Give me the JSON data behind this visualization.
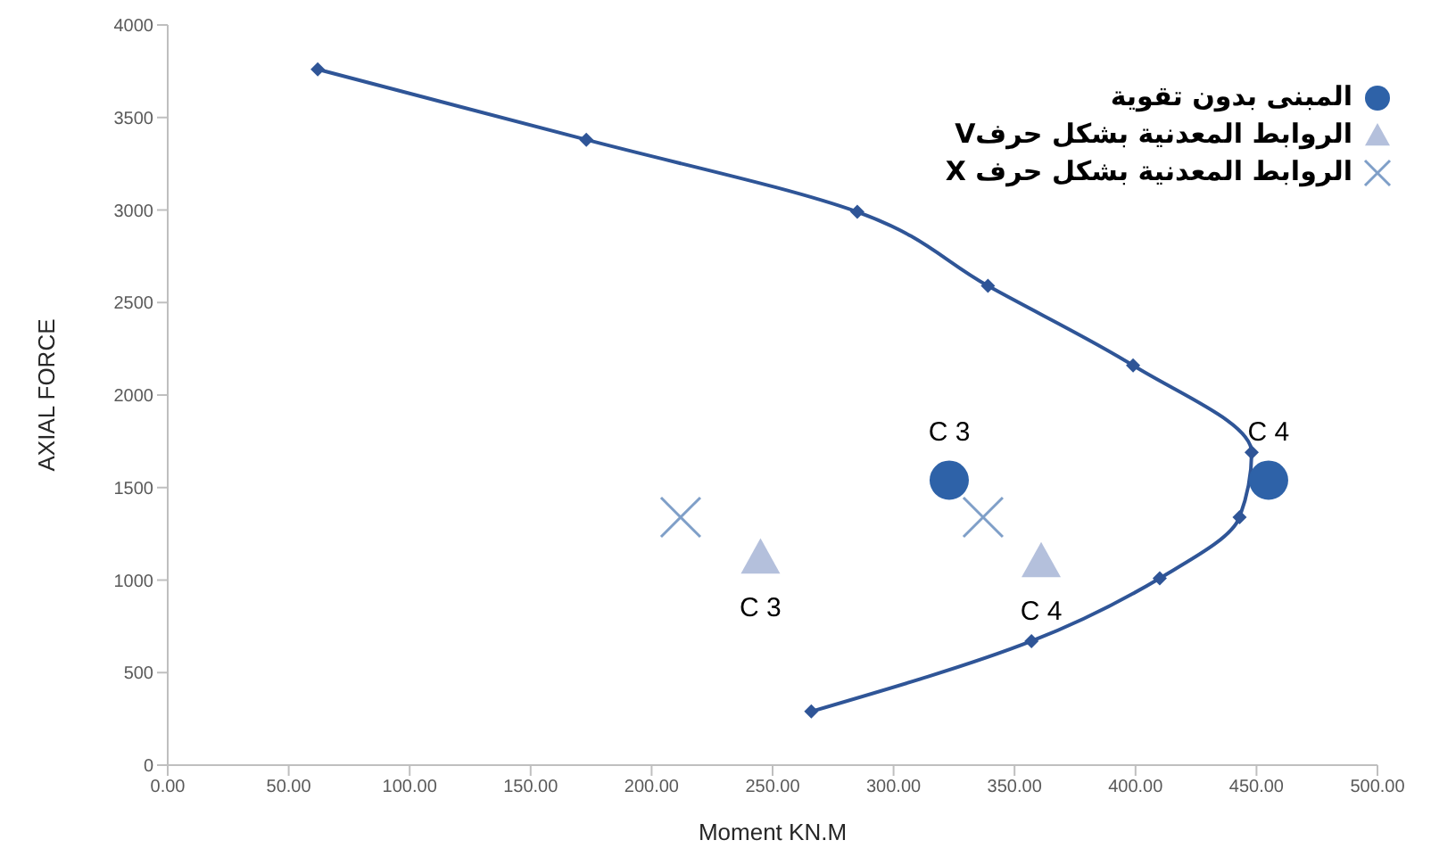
{
  "chart_data": {
    "type": "scatter",
    "xlabel": "Moment KN.M",
    "ylabel": "AXIAL FORCE",
    "xlim": [
      0,
      500
    ],
    "xticks": [
      {
        "value": 0,
        "label": "0.00"
      },
      {
        "value": 50,
        "label": "50.00"
      },
      {
        "value": 100,
        "label": "100.00"
      },
      {
        "value": 150,
        "label": "150.00"
      },
      {
        "value": 200,
        "label": "200.00"
      },
      {
        "value": 250,
        "label": "250.00"
      },
      {
        "value": 300,
        "label": "300.00"
      },
      {
        "value": 350,
        "label": "350.00"
      },
      {
        "value": 400,
        "label": "400.00"
      },
      {
        "value": 450,
        "label": "450.00"
      },
      {
        "value": 500,
        "label": "500.00"
      }
    ],
    "ylim": [
      0,
      4000
    ],
    "yticks": [
      0,
      500,
      1000,
      1500,
      2000,
      2500,
      3000,
      3500,
      4000
    ],
    "grid": false,
    "legend": "top right",
    "series": [
      {
        "type": "line",
        "color": "#2f5597",
        "marker": "diamond",
        "x": [
          62,
          173,
          285,
          339,
          399,
          448,
          443,
          410,
          357,
          266
        ],
        "values": [
          3760,
          3380,
          2990,
          2590,
          2160,
          1690,
          1340,
          1010,
          670,
          290
        ]
      },
      {
        "name": "المبنى بدون تقوية",
        "color": "#2e62a8",
        "marker": "circle",
        "x": [
          323,
          455
        ],
        "values": [
          1540,
          1540
        ]
      },
      {
        "name": "الروابط المعدنية بشكل حرفV",
        "color": "#b4c0dc",
        "marker": "triangle",
        "x": [
          245,
          361
        ],
        "values": [
          1120,
          1100
        ]
      },
      {
        "name": "الروابط المعدنية بشكل حرف X",
        "color": "#7f9fc8",
        "marker": "cross",
        "x": [
          212,
          337
        ],
        "values": [
          1340,
          1340
        ]
      }
    ],
    "annotations": [
      {
        "text": "C 3",
        "x": 323,
        "y": 1540
      },
      {
        "text": "C 4",
        "x": 455,
        "y": 1540
      },
      {
        "text": "C 3",
        "x": 245,
        "y": 1120
      },
      {
        "text": "C 4",
        "x": 361,
        "y": 1100
      }
    ]
  }
}
